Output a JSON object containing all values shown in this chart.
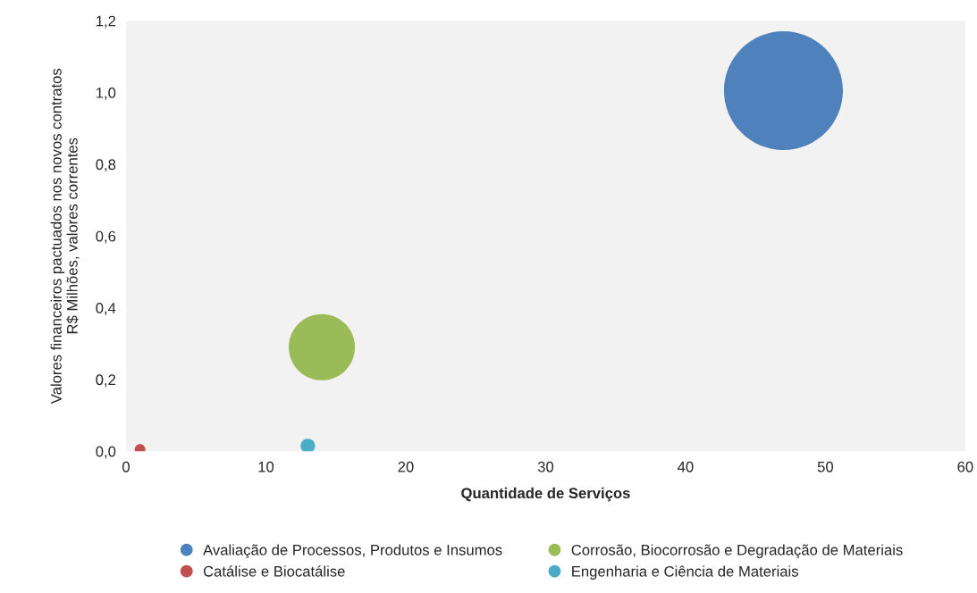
{
  "chart_data": {
    "type": "bubble",
    "xlabel": "Quantidade de Serviços",
    "ylabel": "Valores financeiros pactuados nos novos contratos\nR$ Milhões, valores correntes",
    "series": [
      {
        "name": "Avaliação de Processos, Produtos e Insumos",
        "color": "#4f81bd",
        "x": [
          47
        ],
        "values": [
          1.005
        ],
        "sizes": [
          1
        ]
      },
      {
        "name": "Catálise e Biocatálise",
        "color": "#c0504d",
        "x": [
          1
        ],
        "values": [
          0.005
        ],
        "sizes": [
          0.008
        ]
      },
      {
        "name": "Corrosão, Biocorrosão e Degradação de Materiais",
        "color": "#9bbb59",
        "x": [
          14
        ],
        "values": [
          0.29
        ],
        "sizes": [
          0.31
        ]
      },
      {
        "name": "Engenharia e Ciência de Materiais",
        "color": "#4bacc6",
        "x": [
          13
        ],
        "values": [
          0.015
        ],
        "sizes": [
          0.015
        ]
      }
    ],
    "xlim": [
      0,
      60
    ],
    "xticks": [
      0,
      10,
      20,
      30,
      40,
      50,
      60
    ],
    "ylim": [
      0,
      1.2
    ],
    "yticks": [
      {
        "value": 0,
        "label": "0,0"
      },
      {
        "value": 0.2,
        "label": "0,2"
      },
      {
        "value": 0.4,
        "label": "0,4"
      },
      {
        "value": 0.6,
        "label": "0,6"
      },
      {
        "value": 0.8,
        "label": "0,8"
      },
      {
        "value": 1.0,
        "label": "1,0"
      },
      {
        "value": 1.2,
        "label": "1,2"
      }
    ],
    "grid": false,
    "legend": "bottom"
  }
}
